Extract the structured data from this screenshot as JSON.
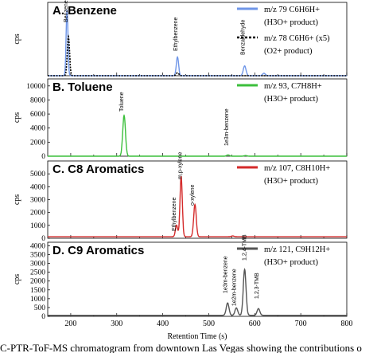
{
  "figure": {
    "xlabel": "Retention Time (s)",
    "x_ticks": [
      "200",
      "300",
      "400",
      "500",
      "600",
      "700",
      "800"
    ],
    "caption": "C-PTR-ToF-MS chromatogram from downtown Las Vegas showing the contributions o"
  },
  "chart_data": [
    {
      "type": "line",
      "title": "A. Benzene",
      "ylabel": "cps",
      "xlim": [
        150,
        800
      ],
      "ylim": [
        0,
        1800
      ],
      "y_ticks": [],
      "legend": [
        {
          "line1": "m/z 79 C6H6H+",
          "line2": "(H3O+ product)",
          "color": "#6f96e8",
          "style": "solid"
        },
        {
          "line1": "m/z 78 C6H6+ (x5)",
          "line2": "(O2+ product)",
          "color": "#000000",
          "style": "dotted"
        }
      ],
      "annotations": [
        "Benzene",
        "Ethylbenzene",
        "Benzaldehyde"
      ],
      "series": [
        {
          "name": "m/z 79 C6H6H+",
          "color": "#6f96e8",
          "baseline": 0,
          "peaks": [
            [
              192,
              1620,
              2.0
            ],
            [
              432,
              460,
              2.5
            ],
            [
              578,
              240,
              3.0
            ],
            [
              620,
              60,
              3.0
            ]
          ]
        },
        {
          "name": "m/z 78 C6H6+ (x5)",
          "color": "#000000",
          "baseline": 0,
          "peaks": [
            [
              195,
              960,
              2.5
            ],
            [
              432,
              70,
              3.0
            ]
          ]
        }
      ]
    },
    {
      "type": "line",
      "title": "B. Toluene",
      "ylabel": "cps",
      "xlim": [
        150,
        800
      ],
      "ylim": [
        0,
        11000
      ],
      "y_ticks": [
        0,
        2000,
        4000,
        6000,
        8000,
        10000
      ],
      "legend": [
        {
          "line1": "m/z 93, C7H8H+",
          "line2": "(H3O+ product)",
          "color": "#3cbf3c",
          "style": "solid"
        }
      ],
      "annotations": [
        "Toluene",
        "1e3m-benzene"
      ],
      "series": [
        {
          "name": "m/z 93, C7H8H+",
          "color": "#3cbf3c",
          "baseline": 0,
          "peaks": [
            [
              316,
              5800,
              3.0
            ],
            [
              542,
              180,
              3.0
            ],
            [
              580,
              90,
              3.0
            ]
          ]
        }
      ]
    },
    {
      "type": "line",
      "title": "C. C8 Aromatics",
      "ylabel": "cps",
      "xlim": [
        150,
        800
      ],
      "ylim": [
        0,
        6000
      ],
      "y_ticks": [
        0,
        1000,
        2000,
        3000,
        4000,
        5000
      ],
      "legend": [
        {
          "line1": "m/z 107, C8H10H+",
          "line2": "(H3O+ product)",
          "color": "#d42a2a",
          "style": "solid"
        }
      ],
      "annotations": [
        "Ethylbenzene",
        "m,p-xylene",
        "o-xylene"
      ],
      "series": [
        {
          "name": "m/z 107, C8H10H+",
          "color": "#d42a2a",
          "baseline": 120,
          "peaks": [
            [
              430,
              900,
              2.5
            ],
            [
              440,
              4700,
              2.5
            ],
            [
              470,
              2500,
              2.8
            ],
            [
              552,
              60,
              3.0
            ]
          ]
        }
      ]
    },
    {
      "type": "line",
      "title": "D. C9 Aromatics",
      "ylabel": "cps",
      "xlim": [
        150,
        800
      ],
      "ylim": [
        0,
        4200
      ],
      "y_ticks": [
        0,
        500,
        1000,
        1500,
        2000,
        2500,
        3000,
        3500,
        4000
      ],
      "legend": [
        {
          "line1": "m/z 121, C9H12H+",
          "line2": "(H3O+ product)",
          "color": "#555555",
          "style": "solid"
        }
      ],
      "annotations": [
        "1e3m-benzene",
        "1e2m-benzene",
        "1,2,4-TMB",
        "1,2,3-TMB"
      ],
      "series": [
        {
          "name": "m/z 121, C9H12H+",
          "color": "#555555",
          "baseline": 60,
          "peaks": [
            [
              541,
              700,
              3.0
            ],
            [
              560,
              420,
              3.0
            ],
            [
              578,
              2600,
              3.0
            ],
            [
              608,
              380,
              3.0
            ]
          ]
        }
      ]
    }
  ]
}
